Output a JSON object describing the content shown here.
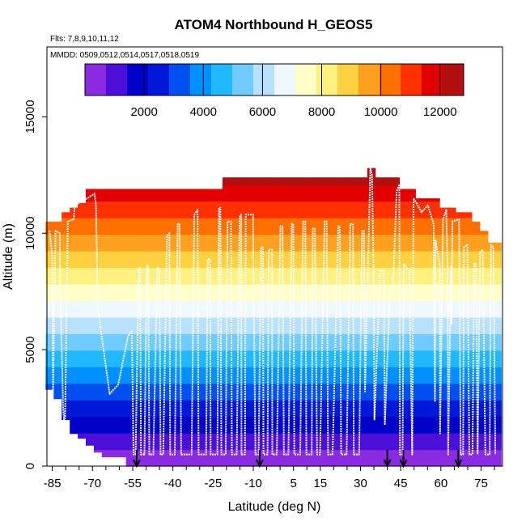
{
  "chart_data": {
    "type": "heatmap",
    "title": "ATOM4 Northbound H_GEOS5",
    "flights_label": "Flts: 7,8,9,10,11,12",
    "dates_label": "MMDD: 0509,0512,0514,0517,0518,0519",
    "xlabel": "Latitude (deg N)",
    "ylabel": "Altitude (m)",
    "xlim": [
      -87,
      83
    ],
    "ylim": [
      0,
      18000
    ],
    "x_ticks": [
      -85,
      -70,
      -55,
      -40,
      -25,
      -10,
      5,
      15,
      30,
      45,
      60,
      75
    ],
    "x_tick_labels": [
      "-85",
      "-70",
      "-55",
      "-40",
      "-25",
      "-10",
      "5",
      "15",
      "30",
      "45",
      "60",
      "75"
    ],
    "y_ticks": [
      0,
      5000,
      10000,
      15000
    ],
    "y_tick_labels": [
      "0",
      "5000",
      "10000",
      "15000"
    ],
    "colorbar": {
      "min": 0,
      "max": 12800,
      "ticks": [
        2000,
        4000,
        6000,
        8000,
        10000,
        12000
      ],
      "tick_labels": [
        "2000",
        "4000",
        "6000",
        "8000",
        "10000",
        "12000"
      ],
      "colors": [
        "#8a2be2",
        "#4b0fd8",
        "#0000c8",
        "#0018d8",
        "#0050f0",
        "#0090ff",
        "#20b8ff",
        "#70ccff",
        "#b8e0ff",
        "#f0f8ff",
        "#ffffc8",
        "#fff080",
        "#ffd040",
        "#ffa020",
        "#ff7000",
        "#ff3000",
        "#e00000",
        "#b01010"
      ]
    },
    "curtain": {
      "bin_width_deg": 3,
      "top_altitude": [
        [
          -86,
          10500
        ],
        [
          -83,
          10500
        ],
        [
          -80,
          10900
        ],
        [
          -77,
          11100
        ],
        [
          -74,
          11300
        ],
        [
          -71,
          11900
        ],
        [
          -68,
          11900
        ],
        [
          -65,
          11900
        ],
        [
          -62,
          11900
        ],
        [
          -59,
          11900
        ],
        [
          -56,
          11900
        ],
        [
          -53,
          11900
        ],
        [
          -50,
          11900
        ],
        [
          -47,
          11900
        ],
        [
          -44,
          11900
        ],
        [
          -41,
          11900
        ],
        [
          -38,
          11900
        ],
        [
          -35,
          11900
        ],
        [
          -32,
          11900
        ],
        [
          -29,
          11900
        ],
        [
          -26,
          11900
        ],
        [
          -23,
          11900
        ],
        [
          -20,
          12400
        ],
        [
          -17,
          12400
        ],
        [
          -14,
          12400
        ],
        [
          -11,
          12400
        ],
        [
          -8,
          12400
        ],
        [
          -5,
          12400
        ],
        [
          -2,
          12400
        ],
        [
          1,
          12400
        ],
        [
          4,
          12400
        ],
        [
          7,
          12400
        ],
        [
          10,
          12400
        ],
        [
          13,
          12400
        ],
        [
          16,
          12400
        ],
        [
          19,
          12400
        ],
        [
          22,
          12400
        ],
        [
          25,
          12400
        ],
        [
          28,
          12400
        ],
        [
          31,
          12400
        ],
        [
          34,
          12900
        ],
        [
          37,
          12400
        ],
        [
          40,
          12400
        ],
        [
          43,
          12400
        ],
        [
          46,
          11900
        ],
        [
          49,
          11900
        ],
        [
          52,
          11500
        ],
        [
          55,
          11500
        ],
        [
          58,
          11500
        ],
        [
          61,
          11100
        ],
        [
          64,
          11100
        ],
        [
          67,
          10900
        ],
        [
          70,
          10900
        ],
        [
          73,
          10500
        ],
        [
          76,
          10100
        ],
        [
          79,
          9600
        ],
        [
          81,
          9600
        ]
      ],
      "bottom_altitude": [
        [
          -86,
          3300
        ],
        [
          -83,
          2900
        ],
        [
          -80,
          2000
        ],
        [
          -77,
          1400
        ],
        [
          -74,
          1200
        ],
        [
          -71,
          900
        ],
        [
          -68,
          600
        ],
        [
          -65,
          400
        ],
        [
          -62,
          400
        ],
        [
          -59,
          400
        ],
        [
          -56,
          0
        ],
        [
          -53,
          0
        ],
        [
          -50,
          0
        ],
        [
          -47,
          0
        ],
        [
          -44,
          0
        ],
        [
          -41,
          0
        ],
        [
          -38,
          0
        ],
        [
          -35,
          0
        ],
        [
          -32,
          0
        ],
        [
          -29,
          0
        ],
        [
          -26,
          0
        ],
        [
          -23,
          0
        ],
        [
          -20,
          0
        ],
        [
          -17,
          0
        ],
        [
          -14,
          0
        ],
        [
          -11,
          0
        ],
        [
          -8,
          0
        ],
        [
          -5,
          0
        ],
        [
          -2,
          0
        ],
        [
          1,
          0
        ],
        [
          4,
          0
        ],
        [
          7,
          0
        ],
        [
          10,
          0
        ],
        [
          13,
          0
        ],
        [
          16,
          0
        ],
        [
          19,
          0
        ],
        [
          22,
          0
        ],
        [
          25,
          0
        ],
        [
          28,
          0
        ],
        [
          31,
          0
        ],
        [
          34,
          0
        ],
        [
          37,
          0
        ],
        [
          40,
          0
        ],
        [
          43,
          0
        ],
        [
          46,
          0
        ],
        [
          49,
          0
        ],
        [
          52,
          0
        ],
        [
          55,
          0
        ],
        [
          58,
          0
        ],
        [
          61,
          0
        ],
        [
          64,
          0
        ],
        [
          67,
          0
        ],
        [
          70,
          0
        ],
        [
          73,
          0
        ],
        [
          76,
          0
        ],
        [
          79,
          0
        ],
        [
          81,
          0
        ]
      ]
    },
    "flight_track": [
      [
        -86,
        10100
      ],
      [
        -85,
        9000
      ],
      [
        -84.7,
        3300
      ],
      [
        -83.8,
        10100
      ],
      [
        -82.2,
        10000
      ],
      [
        -82.1,
        8000
      ],
      [
        -81,
        2600
      ],
      [
        -80.3,
        1400
      ],
      [
        -79.2,
        10500
      ],
      [
        -77,
        10600
      ],
      [
        -76.6,
        11200
      ],
      [
        -72,
        11500
      ],
      [
        -69.2,
        11700
      ],
      [
        -68.7,
        11200
      ],
      [
        -68,
        6800
      ],
      [
        -63.6,
        3100
      ],
      [
        -60.4,
        3500
      ],
      [
        -56.7,
        5600
      ],
      [
        -55.3,
        5800
      ],
      [
        -54.7,
        500
      ],
      [
        -53.9,
        500
      ],
      [
        -52.8,
        8500
      ],
      [
        -52.2,
        8500
      ],
      [
        -51.9,
        500
      ],
      [
        -50.6,
        500
      ],
      [
        -49.7,
        8600
      ],
      [
        -49.2,
        8600
      ],
      [
        -48.8,
        500
      ],
      [
        -47.3,
        500
      ],
      [
        -45.8,
        8500
      ],
      [
        -45,
        8500
      ],
      [
        -44.6,
        500
      ],
      [
        -43.6,
        500
      ],
      [
        -42.2,
        9900
      ],
      [
        -41.3,
        10000
      ],
      [
        -41,
        500
      ],
      [
        -39.3,
        500
      ],
      [
        -38.2,
        10400
      ],
      [
        -37.5,
        10400
      ],
      [
        -36.9,
        500
      ],
      [
        -33,
        500
      ],
      [
        -32,
        10800
      ],
      [
        -30.8,
        11000
      ],
      [
        -30.4,
        500
      ],
      [
        -27.6,
        500
      ],
      [
        -27,
        8900
      ],
      [
        -26.1,
        8900
      ],
      [
        -25.9,
        500
      ],
      [
        -23.4,
        500
      ],
      [
        -22.8,
        11100
      ],
      [
        -22.3,
        11100
      ],
      [
        -21.9,
        500
      ],
      [
        -20.3,
        500
      ],
      [
        -19.6,
        10500
      ],
      [
        -18.3,
        10500
      ],
      [
        -18,
        500
      ],
      [
        -16.2,
        500
      ],
      [
        -15.1,
        10700
      ],
      [
        -14.5,
        10800
      ],
      [
        -14.4,
        500
      ],
      [
        -13.1,
        500
      ],
      [
        -12.8,
        10800
      ],
      [
        -10.1,
        10800
      ],
      [
        -10,
        9000
      ],
      [
        -9.2,
        500
      ],
      [
        -8,
        500
      ],
      [
        -7.1,
        9400
      ],
      [
        -6.4,
        9400
      ],
      [
        -6.2,
        500
      ],
      [
        -4.7,
        500
      ],
      [
        -4.2,
        9300
      ],
      [
        -3,
        9300
      ],
      [
        -2.9,
        500
      ],
      [
        -1.2,
        500
      ],
      [
        0.1,
        10300
      ],
      [
        0.9,
        10300
      ],
      [
        1.4,
        500
      ],
      [
        3.1,
        500
      ],
      [
        4.3,
        10400
      ],
      [
        4.9,
        10400
      ],
      [
        5.3,
        500
      ],
      [
        7.5,
        500
      ],
      [
        8.6,
        10500
      ],
      [
        9.4,
        10500
      ],
      [
        9.8,
        500
      ],
      [
        11.8,
        500
      ],
      [
        12.2,
        10200
      ],
      [
        13,
        10200
      ],
      [
        13.8,
        500
      ],
      [
        14.9,
        500
      ],
      [
        16.6,
        10500
      ],
      [
        17.4,
        10500
      ],
      [
        17.9,
        500
      ],
      [
        19.6,
        500
      ],
      [
        21.7,
        10300
      ],
      [
        22.3,
        10300
      ],
      [
        22.8,
        500
      ],
      [
        24.8,
        500
      ],
      [
        26.2,
        10400
      ],
      [
        27.2,
        10400
      ],
      [
        27.5,
        500
      ],
      [
        29.5,
        500
      ],
      [
        30.6,
        10100
      ],
      [
        31.3,
        10100
      ],
      [
        31.7,
        3200
      ],
      [
        33.7,
        12800
      ],
      [
        34.3,
        12500
      ],
      [
        34.9,
        8300
      ],
      [
        35.2,
        2000
      ],
      [
        37.3,
        8400
      ],
      [
        38.7,
        8400
      ],
      [
        39.1,
        1800
      ],
      [
        40.9,
        7300
      ],
      [
        42.1,
        7500
      ],
      [
        43.5,
        11800
      ],
      [
        44.5,
        12100
      ],
      [
        44.7,
        500
      ],
      [
        45.7,
        500
      ],
      [
        46.1,
        8700
      ],
      [
        47.3,
        8500
      ],
      [
        48.2,
        8400
      ],
      [
        49.3,
        500
      ],
      [
        49.8,
        11500
      ],
      [
        50.9,
        11300
      ],
      [
        52.8,
        10900
      ],
      [
        55.1,
        11200
      ],
      [
        57.3,
        10400
      ],
      [
        57.8,
        2800
      ],
      [
        58,
        9700
      ],
      [
        59.6,
        8600
      ],
      [
        59.7,
        1400
      ],
      [
        60.8,
        10600
      ],
      [
        62,
        11000
      ],
      [
        62.5,
        8500
      ],
      [
        62.7,
        500
      ],
      [
        63.8,
        8600
      ],
      [
        64,
        6100
      ],
      [
        64.3,
        10500
      ],
      [
        66.8,
        10600
      ],
      [
        67.4,
        500
      ],
      [
        68.3,
        500
      ],
      [
        68.6,
        9400
      ],
      [
        69.9,
        9500
      ],
      [
        70.6,
        500
      ],
      [
        71.8,
        500
      ],
      [
        72.4,
        8700
      ],
      [
        73.1,
        8700
      ],
      [
        73.7,
        500
      ],
      [
        74.6,
        9200
      ],
      [
        75.6,
        9300
      ],
      [
        76.6,
        500
      ],
      [
        78.2,
        500
      ],
      [
        78.7,
        9500
      ],
      [
        79.6,
        9400
      ],
      [
        80.3,
        500
      ]
    ],
    "pressure_marks_lat": [
      -53.5,
      -7.6,
      40,
      46,
      66.5
    ],
    "pressure_mark_color": "#000000"
  }
}
